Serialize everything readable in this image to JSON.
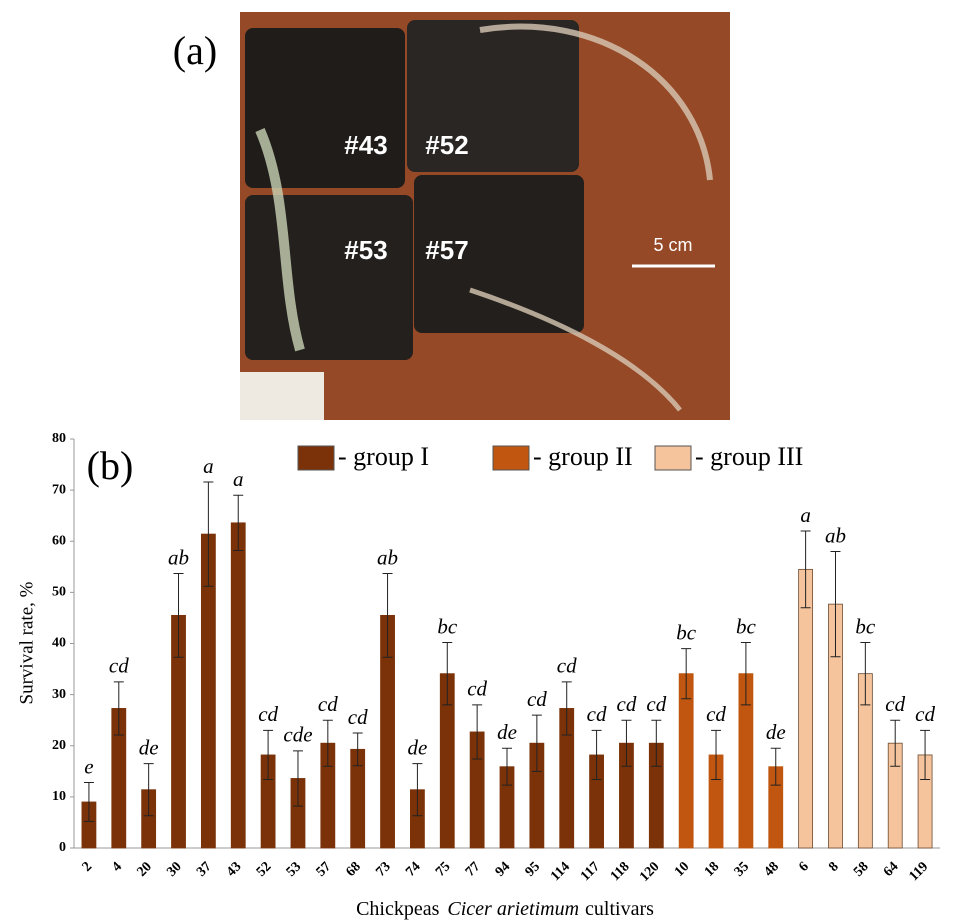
{
  "photo": {
    "panel": "(a)",
    "pots": [
      "#43",
      "#52",
      "#53",
      "#57"
    ],
    "scale_bar": "5 cm"
  },
  "chart_data": {
    "type": "bar",
    "panel": "(b)",
    "ylabel": "Survival rate, %",
    "xlabel": "Chickpeas",
    "xlabel_species": "Cicer arietimum",
    "xlabel_end": "cultivars",
    "categories": [
      "2",
      "4",
      "20",
      "30",
      "37",
      "43",
      "52",
      "53",
      "57",
      "68",
      "73",
      "74",
      "75",
      "77",
      "94",
      "95",
      "114",
      "117",
      "118",
      "120",
      "10",
      "18",
      "35",
      "48",
      "6",
      "8",
      "58",
      "64",
      "119"
    ],
    "ylim": [
      0,
      80
    ],
    "yticks": [
      0,
      10,
      20,
      30,
      40,
      50,
      60,
      70,
      80
    ],
    "grid": false,
    "series": [
      {
        "name": "- group I",
        "color": "#7b3209",
        "values": [
          9,
          27.3,
          11.4,
          45.5,
          61.4,
          63.6,
          18.2,
          13.6,
          20.5,
          19.3,
          45.5,
          11.4,
          34.1,
          22.7,
          15.9,
          20.5,
          27.3,
          18.2,
          20.5,
          20.5,
          null,
          null,
          null,
          null,
          null,
          null,
          null,
          null,
          null
        ],
        "errors": [
          3.8,
          5.2,
          5.1,
          8.2,
          10.2,
          5.4,
          4.8,
          5.4,
          4.5,
          3.2,
          8.2,
          5.1,
          6.1,
          5.3,
          3.6,
          5.5,
          5.2,
          4.8,
          4.5,
          4.5,
          null,
          null,
          null,
          null,
          null,
          null,
          null,
          null,
          null
        ],
        "letters": [
          "e",
          "cd",
          "de",
          "ab",
          "a",
          "a",
          "cd",
          "cde",
          "cd",
          "cd",
          "ab",
          "de",
          "bc",
          "cd",
          "de",
          "cd",
          "cd",
          "cd",
          "cd",
          "cd",
          null,
          null,
          null,
          null,
          null,
          null,
          null,
          null,
          null
        ]
      },
      {
        "name": "- group II",
        "color": "#c0560f",
        "values": [
          null,
          null,
          null,
          null,
          null,
          null,
          null,
          null,
          null,
          null,
          null,
          null,
          null,
          null,
          null,
          null,
          null,
          null,
          null,
          null,
          34.1,
          18.2,
          34.1,
          15.9,
          null,
          null,
          null,
          null,
          null
        ],
        "errors": [
          null,
          null,
          null,
          null,
          null,
          null,
          null,
          null,
          null,
          null,
          null,
          null,
          null,
          null,
          null,
          null,
          null,
          null,
          null,
          null,
          4.9,
          4.8,
          6.1,
          3.6,
          null,
          null,
          null,
          null,
          null
        ],
        "letters": [
          null,
          null,
          null,
          null,
          null,
          null,
          null,
          null,
          null,
          null,
          null,
          null,
          null,
          null,
          null,
          null,
          null,
          null,
          null,
          null,
          "bc",
          "cd",
          "bc",
          "de",
          null,
          null,
          null,
          null,
          null
        ]
      },
      {
        "name": "- group III",
        "color": "#f5c49c",
        "values": [
          null,
          null,
          null,
          null,
          null,
          null,
          null,
          null,
          null,
          null,
          null,
          null,
          null,
          null,
          null,
          null,
          null,
          null,
          null,
          null,
          null,
          null,
          null,
          null,
          54.5,
          47.7,
          34.1,
          20.5,
          18.2
        ],
        "errors": [
          null,
          null,
          null,
          null,
          null,
          null,
          null,
          null,
          null,
          null,
          null,
          null,
          null,
          null,
          null,
          null,
          null,
          null,
          null,
          null,
          null,
          null,
          null,
          null,
          7.5,
          10.3,
          6.1,
          4.5,
          4.8
        ],
        "letters": [
          null,
          null,
          null,
          null,
          null,
          null,
          null,
          null,
          null,
          null,
          null,
          null,
          null,
          null,
          null,
          null,
          null,
          null,
          null,
          null,
          null,
          null,
          null,
          null,
          "a",
          "ab",
          "bc",
          "cd",
          "cd"
        ]
      }
    ]
  }
}
